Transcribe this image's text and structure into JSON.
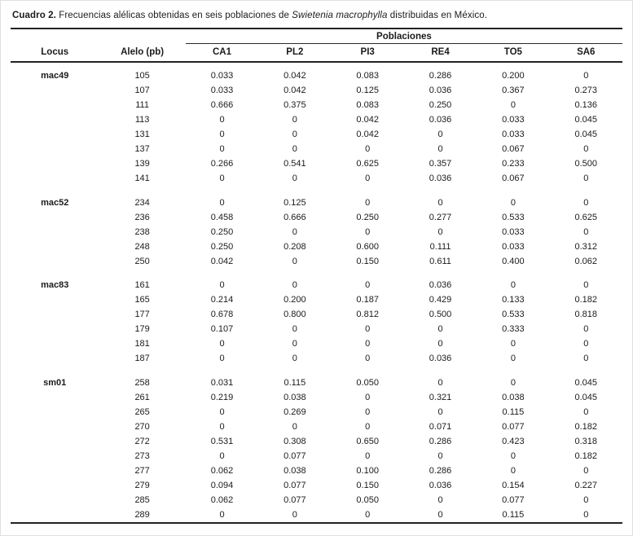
{
  "caption": {
    "label": "Cuadro 2.",
    "text": " Frecuencias alélicas obtenidas en seis poblaciones de ",
    "species": "Swietenia macrophylla",
    "suffix": " distribuidas en México."
  },
  "table": {
    "group_header": "Poblaciones",
    "columns": [
      "Locus",
      "Alelo (pb)",
      "CA1",
      "PL2",
      "PI3",
      "RE4",
      "TO5",
      "SA6"
    ],
    "groups": [
      {
        "locus": "mac49",
        "rows": [
          {
            "allele": "105",
            "values": [
              "0.033",
              "0.042",
              "0.083",
              "0.286",
              "0.200",
              "0"
            ]
          },
          {
            "allele": "107",
            "values": [
              "0.033",
              "0.042",
              "0.125",
              "0.036",
              "0.367",
              "0.273"
            ]
          },
          {
            "allele": "111",
            "values": [
              "0.666",
              "0.375",
              "0.083",
              "0.250",
              "0",
              "0.136"
            ]
          },
          {
            "allele": "113",
            "values": [
              "0",
              "0",
              "0.042",
              "0.036",
              "0.033",
              "0.045"
            ]
          },
          {
            "allele": "131",
            "values": [
              "0",
              "0",
              "0.042",
              "0",
              "0.033",
              "0.045"
            ]
          },
          {
            "allele": "137",
            "values": [
              "0",
              "0",
              "0",
              "0",
              "0.067",
              "0"
            ]
          },
          {
            "allele": "139",
            "values": [
              "0.266",
              "0.541",
              "0.625",
              "0.357",
              "0.233",
              "0.500"
            ]
          },
          {
            "allele": "141",
            "values": [
              "0",
              "0",
              "0",
              "0.036",
              "0.067",
              "0"
            ]
          }
        ]
      },
      {
        "locus": "mac52",
        "rows": [
          {
            "allele": "234",
            "values": [
              "0",
              "0.125",
              "0",
              "0",
              "0",
              "0"
            ]
          },
          {
            "allele": "236",
            "values": [
              "0.458",
              "0.666",
              "0.250",
              "0.277",
              "0.533",
              "0.625"
            ]
          },
          {
            "allele": "238",
            "values": [
              "0.250",
              "0",
              "0",
              "0",
              "0.033",
              "0"
            ]
          },
          {
            "allele": "248",
            "values": [
              "0.250",
              "0.208",
              "0.600",
              "0.111",
              "0.033",
              "0.312"
            ]
          },
          {
            "allele": "250",
            "values": [
              "0.042",
              "0",
              "0.150",
              "0.611",
              "0.400",
              "0.062"
            ]
          }
        ]
      },
      {
        "locus": "mac83",
        "rows": [
          {
            "allele": "161",
            "values": [
              "0",
              "0",
              "0",
              "0.036",
              "0",
              "0"
            ]
          },
          {
            "allele": "165",
            "values": [
              "0.214",
              "0.200",
              "0.187",
              "0.429",
              "0.133",
              "0.182"
            ]
          },
          {
            "allele": "177",
            "values": [
              "0.678",
              "0.800",
              "0.812",
              "0.500",
              "0.533",
              "0.818"
            ]
          },
          {
            "allele": "179",
            "values": [
              "0.107",
              "0",
              "0",
              "0",
              "0.333",
              "0"
            ]
          },
          {
            "allele": "181",
            "values": [
              "0",
              "0",
              "0",
              "0",
              "0",
              "0"
            ]
          },
          {
            "allele": "187",
            "values": [
              "0",
              "0",
              "0",
              "0.036",
              "0",
              "0"
            ]
          }
        ]
      },
      {
        "locus": "sm01",
        "rows": [
          {
            "allele": "258",
            "values": [
              "0.031",
              "0.115",
              "0.050",
              "0",
              "0",
              "0.045"
            ]
          },
          {
            "allele": "261",
            "values": [
              "0.219",
              "0.038",
              "0",
              "0.321",
              "0.038",
              "0.045"
            ]
          },
          {
            "allele": "265",
            "values": [
              "0",
              "0.269",
              "0",
              "0",
              "0.115",
              "0"
            ]
          },
          {
            "allele": "270",
            "values": [
              "0",
              "0",
              "0",
              "0.071",
              "0.077",
              "0.182"
            ]
          },
          {
            "allele": "272",
            "values": [
              "0.531",
              "0.308",
              "0.650",
              "0.286",
              "0.423",
              "0.318"
            ]
          },
          {
            "allele": "273",
            "values": [
              "0",
              "0.077",
              "0",
              "0",
              "0",
              "0.182"
            ]
          },
          {
            "allele": "277",
            "values": [
              "0.062",
              "0.038",
              "0.100",
              "0.286",
              "0",
              "0"
            ]
          },
          {
            "allele": "279",
            "values": [
              "0.094",
              "0.077",
              "0.150",
              "0.036",
              "0.154",
              "0.227"
            ]
          },
          {
            "allele": "285",
            "values": [
              "0.062",
              "0.077",
              "0.050",
              "0",
              "0.077",
              "0"
            ]
          },
          {
            "allele": "289",
            "values": [
              "0",
              "0",
              "0",
              "0",
              "0.115",
              "0"
            ]
          }
        ]
      }
    ]
  }
}
